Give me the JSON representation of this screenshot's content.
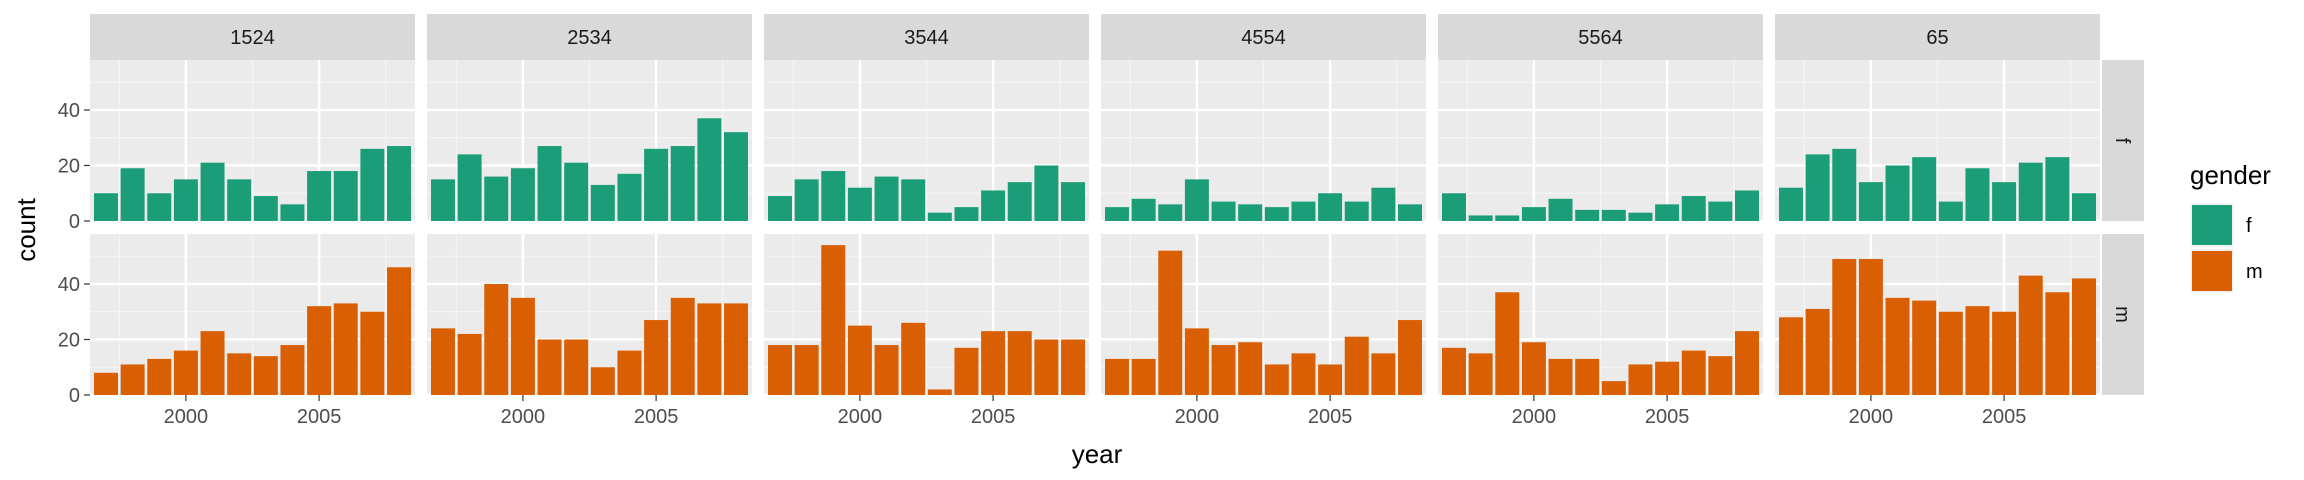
{
  "chart_data": {
    "type": "bar",
    "facet_layout": "grid",
    "column_facets": [
      "1524",
      "2534",
      "3544",
      "4554",
      "5564",
      "65"
    ],
    "row_facets": [
      "f",
      "m"
    ],
    "xlabel": "year",
    "ylabel": "count",
    "x_ticks": [
      2000,
      2005
    ],
    "y_ticks": [
      0,
      20,
      40
    ],
    "xlim": [
      1996.4,
      2008.6
    ],
    "ylim": [
      0,
      58
    ],
    "years": [
      1997,
      1998,
      1999,
      2000,
      2001,
      2002,
      2003,
      2004,
      2005,
      2006,
      2007,
      2008
    ],
    "legend": {
      "title": "gender",
      "position": "right",
      "entries": [
        {
          "label": "f",
          "color": "#1b9e77"
        },
        {
          "label": "m",
          "color": "#d95f02"
        }
      ]
    },
    "colors": {
      "f": "#1b9e77",
      "m": "#d95f02"
    },
    "grid": true,
    "series": [
      {
        "age": "1524",
        "gender": "f",
        "values": [
          10,
          19,
          10,
          15,
          21,
          15,
          9,
          6,
          18,
          18,
          26,
          27
        ]
      },
      {
        "age": "2534",
        "gender": "f",
        "values": [
          15,
          24,
          16,
          19,
          27,
          21,
          13,
          17,
          26,
          27,
          37,
          32
        ]
      },
      {
        "age": "3544",
        "gender": "f",
        "values": [
          9,
          15,
          18,
          12,
          16,
          15,
          3,
          5,
          11,
          14,
          20,
          14
        ]
      },
      {
        "age": "4554",
        "gender": "f",
        "values": [
          5,
          8,
          6,
          15,
          7,
          6,
          5,
          7,
          10,
          7,
          12,
          6
        ]
      },
      {
        "age": "5564",
        "gender": "f",
        "values": [
          10,
          2,
          2,
          5,
          8,
          4,
          4,
          3,
          6,
          9,
          7,
          11
        ]
      },
      {
        "age": "65",
        "gender": "f",
        "values": [
          12,
          24,
          26,
          14,
          20,
          23,
          7,
          19,
          14,
          21,
          23,
          10
        ]
      },
      {
        "age": "1524",
        "gender": "m",
        "values": [
          8,
          11,
          13,
          16,
          23,
          15,
          14,
          18,
          32,
          33,
          30,
          46
        ]
      },
      {
        "age": "2534",
        "gender": "m",
        "values": [
          24,
          22,
          40,
          35,
          20,
          20,
          10,
          16,
          27,
          35,
          33,
          33
        ]
      },
      {
        "age": "3544",
        "gender": "m",
        "values": [
          18,
          18,
          54,
          25,
          18,
          26,
          2,
          17,
          23,
          23,
          20,
          20
        ]
      },
      {
        "age": "4554",
        "gender": "m",
        "values": [
          13,
          13,
          52,
          24,
          18,
          19,
          11,
          15,
          11,
          21,
          15,
          27
        ]
      },
      {
        "age": "5564",
        "gender": "m",
        "values": [
          17,
          15,
          37,
          19,
          13,
          13,
          5,
          11,
          12,
          16,
          14,
          23
        ]
      },
      {
        "age": "65",
        "gender": "m",
        "values": [
          28,
          31,
          49,
          49,
          35,
          34,
          30,
          32,
          30,
          43,
          37,
          42
        ]
      }
    ]
  }
}
